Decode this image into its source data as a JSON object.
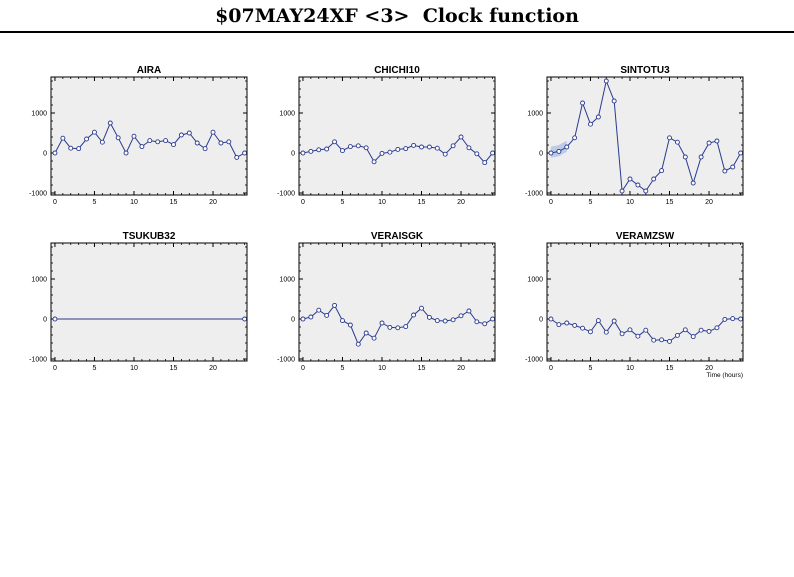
{
  "page_title": "$07MAY24XF <3>  Clock function",
  "colors": {
    "plot_bg": "#eeeeee",
    "series": "#2a3a8e",
    "band": "#b8c6e6",
    "frame": "#000000"
  },
  "chart_data": [
    {
      "type": "line",
      "title": "AIRA",
      "xlabel": "",
      "ylabel": "",
      "xlim": [
        -0.5,
        24.3
      ],
      "ylim": [
        -1050,
        1900
      ],
      "xticks": [
        0,
        5,
        10,
        15,
        20
      ],
      "yticks": [
        -1000,
        0,
        1000
      ],
      "x": [
        0,
        1,
        2,
        3,
        4,
        5,
        6,
        7,
        8,
        9,
        10,
        11,
        12,
        13,
        14,
        15,
        16,
        17,
        18,
        19,
        20,
        21,
        22,
        23,
        24
      ],
      "y": [
        0,
        370,
        120,
        110,
        350,
        520,
        270,
        750,
        380,
        0,
        420,
        160,
        310,
        280,
        310,
        210,
        450,
        500,
        250,
        110,
        520,
        250,
        280,
        -110,
        0
      ]
    },
    {
      "type": "line",
      "title": "CHICHI10",
      "xlabel": "",
      "ylabel": "",
      "xlim": [
        -0.5,
        24.3
      ],
      "ylim": [
        -1050,
        1900
      ],
      "xticks": [
        0,
        5,
        10,
        15,
        20
      ],
      "yticks": [
        -1000,
        0,
        1000
      ],
      "x": [
        0,
        1,
        2,
        3,
        4,
        5,
        6,
        7,
        8,
        9,
        10,
        11,
        12,
        13,
        14,
        15,
        16,
        17,
        18,
        19,
        20,
        21,
        22,
        23,
        24
      ],
      "y": [
        0,
        40,
        80,
        100,
        280,
        60,
        160,
        180,
        130,
        -220,
        -10,
        20,
        90,
        110,
        190,
        150,
        150,
        120,
        -30,
        180,
        400,
        130,
        -20,
        -240,
        0
      ]
    },
    {
      "type": "line",
      "title": "SINTOTU3",
      "xlabel": "",
      "ylabel": "",
      "xlim": [
        -0.5,
        24.3
      ],
      "ylim": [
        -1050,
        1900
      ],
      "xticks": [
        0,
        5,
        10,
        15,
        20
      ],
      "yticks": [
        -1000,
        0,
        1000
      ],
      "x": [
        0,
        1,
        2,
        3,
        4,
        5,
        6,
        7,
        8,
        9,
        10,
        11,
        12,
        13,
        14,
        15,
        16,
        17,
        18,
        19,
        20,
        21,
        22,
        23,
        24
      ],
      "y": [
        0,
        40,
        150,
        380,
        1250,
        720,
        900,
        1800,
        1300,
        -950,
        -650,
        -800,
        -950,
        -650,
        -440,
        380,
        270,
        -100,
        -750,
        -100,
        250,
        300,
        -450,
        -350,
        0
      ]
    },
    {
      "type": "line",
      "title": "TSUKUB32",
      "xlabel": "",
      "ylabel": "",
      "xlim": [
        -0.5,
        24.3
      ],
      "ylim": [
        -1050,
        1900
      ],
      "xticks": [
        0,
        5,
        10,
        15,
        20
      ],
      "yticks": [
        -1000,
        0,
        1000
      ],
      "x": [
        0,
        24
      ],
      "y": [
        0,
        0
      ]
    },
    {
      "type": "line",
      "title": "VERAISGK",
      "xlabel": "",
      "ylabel": "",
      "xlim": [
        -0.5,
        24.3
      ],
      "ylim": [
        -1050,
        1900
      ],
      "xticks": [
        0,
        5,
        10,
        15,
        20
      ],
      "yticks": [
        -1000,
        0,
        1000
      ],
      "x": [
        0,
        1,
        2,
        3,
        4,
        5,
        6,
        7,
        8,
        9,
        10,
        11,
        12,
        13,
        14,
        15,
        16,
        17,
        18,
        19,
        20,
        21,
        22,
        23,
        24
      ],
      "y": [
        0,
        50,
        220,
        90,
        340,
        -40,
        -150,
        -630,
        -350,
        -480,
        -100,
        -210,
        -220,
        -190,
        100,
        270,
        40,
        -40,
        -50,
        -20,
        80,
        200,
        -70,
        -120,
        0
      ]
    },
    {
      "type": "line",
      "title": "VERAMZSW",
      "xlabel": "Time (hours)",
      "ylabel": "",
      "xlim": [
        -0.5,
        24.3
      ],
      "ylim": [
        -1050,
        1900
      ],
      "xticks": [
        0,
        5,
        10,
        15,
        20
      ],
      "yticks": [
        -1000,
        0,
        1000
      ],
      "x": [
        0,
        1,
        2,
        3,
        4,
        5,
        6,
        7,
        8,
        9,
        10,
        11,
        12,
        13,
        14,
        15,
        16,
        17,
        18,
        19,
        20,
        21,
        22,
        23,
        24
      ],
      "y": [
        0,
        -140,
        -100,
        -160,
        -230,
        -320,
        -40,
        -330,
        -50,
        -370,
        -270,
        -430,
        -280,
        -530,
        -520,
        -560,
        -410,
        -270,
        -440,
        -280,
        -310,
        -220,
        -10,
        10,
        0
      ]
    }
  ]
}
